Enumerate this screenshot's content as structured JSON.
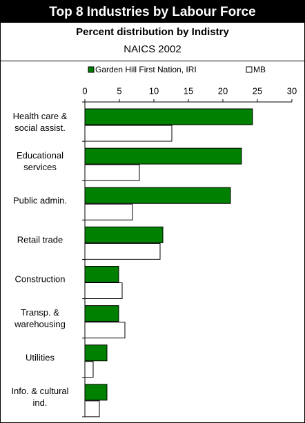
{
  "chart_data": {
    "type": "hbar",
    "title": "Top 8 Industries by Labour Force",
    "subtitle": "Percent distribution by Indistry",
    "note": "NAICS 2002",
    "categories": [
      "Health care &\nsocial assist.",
      "Educational\nservices",
      "Public admin.",
      "Retail trade",
      "Construction",
      "Transp. &\nwarehousing",
      "Utilities",
      "Info. & cultural\nind."
    ],
    "series": [
      {
        "name": "Garden Hill First Nation, IRI",
        "color": "#008000",
        "values": [
          24.3,
          22.7,
          21.1,
          11.3,
          4.9,
          4.9,
          3.2,
          3.2
        ]
      },
      {
        "name": "MB",
        "color": "#ffffff",
        "values": [
          12.6,
          7.9,
          6.9,
          10.9,
          5.4,
          5.8,
          1.2,
          2.1
        ]
      }
    ],
    "xlim": [
      0,
      30
    ],
    "xticks": [
      0,
      5,
      10,
      15,
      20,
      25,
      30
    ],
    "legend": "top",
    "grid": false
  }
}
